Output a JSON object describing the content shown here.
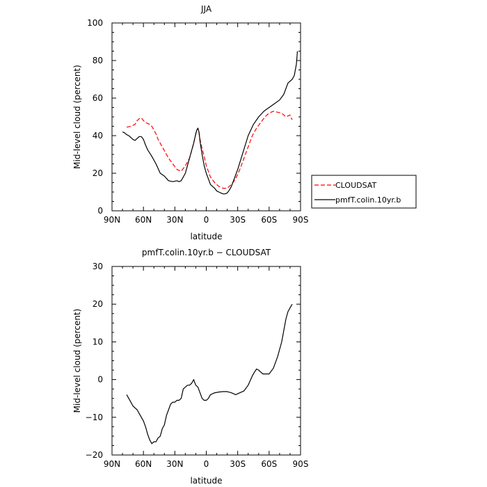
{
  "chart_data": [
    {
      "type": "line",
      "title": "JJA",
      "xlabel": "latitude",
      "ylabel": "Mid-level cloud (percent)",
      "xlim": [
        90,
        -90
      ],
      "ylim": [
        0,
        100
      ],
      "x_ticks": [
        90,
        60,
        30,
        0,
        -30,
        -60,
        -90
      ],
      "x_tick_labels": [
        "90N",
        "60N",
        "30N",
        "0",
        "30S",
        "60S",
        "90S"
      ],
      "y_ticks": [
        0,
        20,
        40,
        60,
        80,
        100
      ],
      "y_tick_labels": [
        "0",
        "20",
        "40",
        "60",
        "80",
        "100"
      ],
      "legend_position": "right",
      "series": [
        {
          "name": "CLOUDSAT",
          "color": "#ff0000",
          "dash": "dashed",
          "x": [
            76,
            72,
            68,
            66,
            64,
            62,
            60,
            58,
            56,
            54,
            52,
            50,
            48,
            46,
            44,
            40,
            36,
            32,
            28,
            24,
            20,
            16,
            14,
            12,
            10,
            9,
            8,
            7,
            6,
            4,
            2,
            0,
            -2,
            -4,
            -8,
            -12,
            -16,
            -20,
            -24,
            -28,
            -32,
            -36,
            -40,
            -44,
            -48,
            -52,
            -56,
            -60,
            -64,
            -68,
            -72,
            -74,
            -76,
            -78,
            -80,
            -81,
            -82
          ],
          "y": [
            44.5,
            45,
            46,
            48,
            49,
            49.5,
            48,
            47,
            46.5,
            46,
            45,
            43,
            41,
            38,
            36,
            32,
            28,
            25,
            22,
            21,
            24,
            28,
            32,
            36,
            41,
            43,
            44,
            42,
            38,
            33,
            29,
            24,
            21,
            18,
            15,
            13,
            12,
            12,
            14,
            17,
            22,
            28,
            34,
            40,
            44,
            47,
            50,
            52,
            53,
            52.5,
            52,
            51,
            50,
            50.5,
            51,
            49.5,
            48.5
          ]
        },
        {
          "name": "pmfT.colin.10yr.b",
          "color": "#000000",
          "dash": "solid",
          "x": [
            80,
            78,
            76,
            74,
            72,
            70,
            68,
            66,
            64,
            62,
            60,
            58,
            56,
            52,
            48,
            44,
            40,
            36,
            32,
            28,
            26,
            24,
            22,
            20,
            18,
            16,
            14,
            12,
            10,
            9,
            8,
            7,
            6,
            4,
            2,
            0,
            -2,
            -4,
            -6,
            -8,
            -10,
            -12,
            -14,
            -16,
            -18,
            -20,
            -22,
            -24,
            -26,
            -30,
            -35,
            -40,
            -45,
            -50,
            -55,
            -60,
            -65,
            -70,
            -74,
            -76,
            -78,
            -80,
            -82,
            -84,
            -86,
            -87
          ],
          "y": [
            42,
            41.5,
            40.5,
            40,
            39,
            38,
            37.5,
            38.5,
            39.5,
            39.5,
            38,
            35,
            32.5,
            29,
            25,
            20,
            18.5,
            16,
            15.5,
            16,
            15.5,
            16,
            18,
            20,
            24,
            28,
            32,
            36,
            41,
            43,
            44,
            42,
            37,
            30,
            24,
            20,
            17,
            14,
            13,
            12,
            10.5,
            10,
            9.5,
            9,
            9,
            9.5,
            11,
            13,
            16,
            22,
            31,
            40,
            46,
            50,
            53,
            55,
            57,
            59,
            62,
            65,
            68,
            69,
            70,
            72,
            78,
            85
          ]
        }
      ]
    },
    {
      "type": "line",
      "title": "pmfT.colin.10yr.b − CLOUDSAT",
      "xlabel": "latitude",
      "ylabel": "Mid-level cloud (percent)",
      "xlim": [
        90,
        -90
      ],
      "ylim": [
        -20,
        30
      ],
      "x_ticks": [
        90,
        60,
        30,
        0,
        -30,
        -60,
        -90
      ],
      "x_tick_labels": [
        "90N",
        "60N",
        "30N",
        "0",
        "30S",
        "60S",
        "90S"
      ],
      "y_ticks": [
        -20,
        -10,
        0,
        10,
        20,
        30
      ],
      "y_tick_labels": [
        "−20",
        "−10",
        "0",
        "10",
        "20",
        "30"
      ],
      "series": [
        {
          "name": "",
          "color": "#000000",
          "dash": "solid",
          "x": [
            76,
            74,
            72,
            70,
            68,
            66,
            64,
            62,
            60,
            58,
            56,
            54,
            52,
            50,
            48,
            46,
            44,
            42,
            40,
            38,
            36,
            34,
            32,
            30,
            28,
            26,
            24,
            22,
            20,
            18,
            16,
            14,
            12,
            10,
            8,
            6,
            4,
            2,
            0,
            -2,
            -4,
            -8,
            -12,
            -16,
            -20,
            -24,
            -28,
            -32,
            -36,
            -40,
            -44,
            -46,
            -48,
            -50,
            -52,
            -54,
            -56,
            -60,
            -64,
            -68,
            -72,
            -74,
            -76,
            -78,
            -80,
            -82
          ],
          "y": [
            -4,
            -5,
            -6,
            -7,
            -7.5,
            -8,
            -9,
            -10,
            -11,
            -12.5,
            -14.5,
            -16,
            -17,
            -16.5,
            -16.5,
            -15.5,
            -15,
            -13,
            -12,
            -9.5,
            -8,
            -6.5,
            -6,
            -6,
            -5.5,
            -5.5,
            -5,
            -2.5,
            -2,
            -1.5,
            -1.5,
            -1,
            0,
            -1.5,
            -2,
            -3.5,
            -5,
            -5.5,
            -5.5,
            -5,
            -4,
            -3.5,
            -3.3,
            -3.2,
            -3.2,
            -3.5,
            -4,
            -3.5,
            -3,
            -1.5,
            1,
            2,
            2.8,
            2.5,
            2,
            1.5,
            1.5,
            1.5,
            3,
            6,
            10,
            13,
            16,
            18,
            19,
            20
          ]
        }
      ]
    }
  ]
}
